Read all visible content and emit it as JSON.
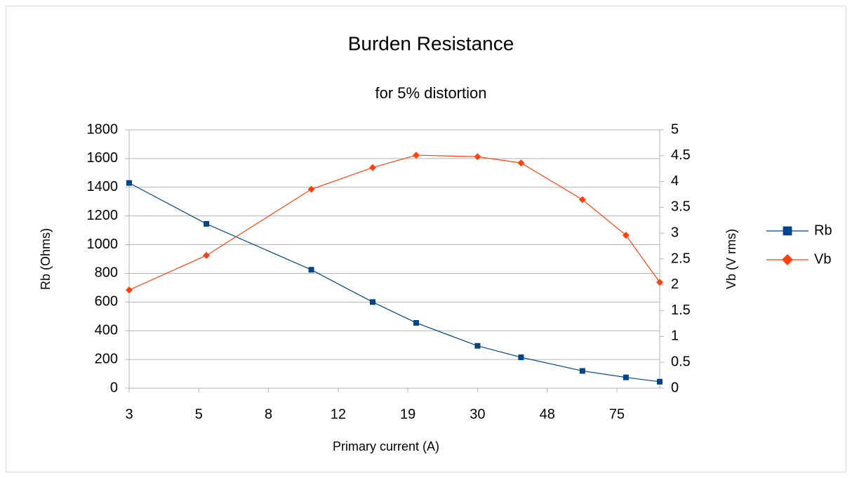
{
  "chart_data": {
    "type": "line",
    "title": "Burden Resistance",
    "subtitle": "for 5% distortion",
    "xlabel": "Primary current (A)",
    "ylabel": "Rb (Ohms)",
    "y2label": "Vb (V rms)",
    "xscale": "log",
    "x": [
      3,
      5,
      10,
      15,
      20,
      30,
      40,
      60,
      80,
      100
    ],
    "series": [
      {
        "name": "Rb",
        "color": "#004586",
        "marker": "square",
        "values": [
          1430,
          1145,
          825,
          600,
          455,
          295,
          215,
          120,
          75,
          45
        ]
      },
      {
        "name": "Vb",
        "color": "#ff420e",
        "marker": "diamond",
        "axis": "y2",
        "values": [
          1.9,
          2.57,
          3.85,
          4.27,
          4.51,
          4.48,
          4.36,
          3.65,
          2.96,
          2.05
        ]
      }
    ],
    "xlim": [
      3,
      100
    ],
    "xticks": [
      3,
      {
        "value": 4.755,
        "label": "5"
      },
      {
        "value": 7.536,
        "label": "8"
      },
      {
        "value": 11.943,
        "label": "12"
      },
      {
        "value": 18.929,
        "label": "19"
      },
      30,
      {
        "value": 47.547,
        "label": "48"
      },
      {
        "value": 75.357,
        "label": "75"
      }
    ],
    "ylim": [
      0,
      1800
    ],
    "yticks": [
      0,
      200,
      400,
      600,
      800,
      1000,
      1200,
      1400,
      1600,
      1800
    ],
    "y2lim": [
      0,
      5
    ],
    "y2ticks": [
      0,
      0.5,
      1,
      1.5,
      2,
      2.5,
      3,
      3.5,
      4,
      4.5,
      5
    ],
    "grid": true,
    "legend": "right"
  }
}
